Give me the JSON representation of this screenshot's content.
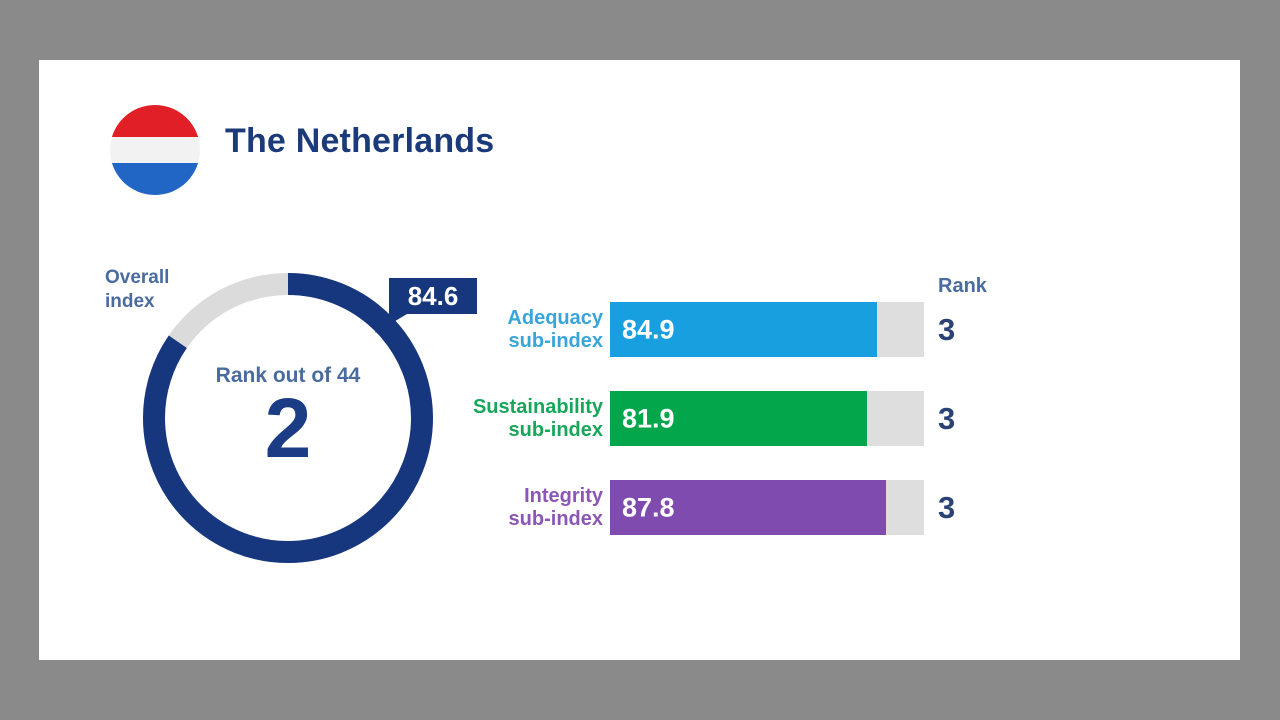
{
  "page": {
    "background_color": "#8A8A8A",
    "card_color": "#FFFFFF"
  },
  "header": {
    "title": "The Netherlands",
    "title_color": "#1B3A7A",
    "flag": {
      "red": "#E02026",
      "white": "#F2F2F2",
      "blue": "#2166C5"
    }
  },
  "overall": {
    "label_line1": "Overall",
    "label_line2": "index",
    "label_color": "#4A6B9F",
    "value": "84.6",
    "value_number": 84.6,
    "max": 100,
    "center_caption": "Rank out of 44",
    "center_caption_color": "#4A6B9F",
    "rank": "2",
    "rank_color": "#1B3D85",
    "ring_color": "#16367D",
    "ring_track_color": "#DBDBDB",
    "badge_color": "#16367D"
  },
  "sub_indices": {
    "rank_header": "Rank",
    "rank_header_color": "#4A6B9F",
    "rank_number_color": "#2A4374",
    "track_color": "#DEDEDE",
    "rows": [
      {
        "label_line1": "Adequacy",
        "label_line2": "sub-index",
        "value": "84.9",
        "value_number": 84.9,
        "rank": "3",
        "bar_color": "#189FE0",
        "label_color": "#38A5DB"
      },
      {
        "label_line1": "Sustainability",
        "label_line2": "sub-index",
        "value": "81.9",
        "value_number": 81.9,
        "rank": "3",
        "bar_color": "#03A64A",
        "label_color": "#18A75A"
      },
      {
        "label_line1": "Integrity",
        "label_line2": "sub-index",
        "value": "87.8",
        "value_number": 87.8,
        "rank": "3",
        "bar_color": "#7F4BAE",
        "label_color": "#8C57B4"
      }
    ]
  },
  "chart_data": [
    {
      "type": "pie",
      "variant": "donut-gauge",
      "title": "Overall index",
      "values": [
        {
          "label": "Overall index",
          "value": 84.6
        }
      ],
      "max": 100,
      "fill_start": "12 o'clock, clockwise",
      "annotations": [
        "84.6",
        "Rank out of 44",
        "2"
      ]
    },
    {
      "type": "bar",
      "orientation": "horizontal",
      "categories": [
        "Adequacy sub-index",
        "Sustainability sub-index",
        "Integrity sub-index"
      ],
      "values": [
        84.9,
        81.9,
        87.8
      ],
      "ranks": [
        3,
        3,
        3
      ],
      "xlim": [
        0,
        100
      ],
      "legend": "none",
      "value_labels": "inside-left",
      "extra_column": "Rank"
    }
  ]
}
